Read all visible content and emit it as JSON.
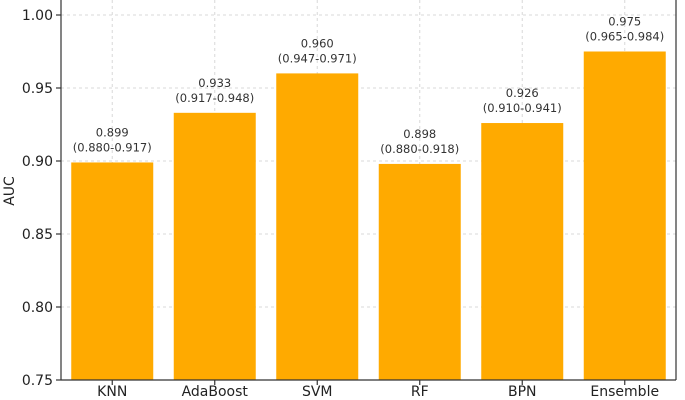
{
  "chart_data": {
    "type": "bar",
    "title": "",
    "xlabel": "",
    "ylabel": "AUC",
    "ylim": [
      0.75,
      1.0
    ],
    "yticks": [
      "0.75",
      "0.80",
      "0.85",
      "0.90",
      "0.95",
      "1.00"
    ],
    "ytick_values": [
      0.75,
      0.8,
      0.85,
      0.9,
      0.95,
      1.0
    ],
    "grid": true,
    "bar_color": "#FFAA00",
    "categories": [
      "KNN",
      "AdaBoost",
      "SVM",
      "RF",
      "BPN",
      "Ensemble"
    ],
    "values": [
      0.899,
      0.933,
      0.96,
      0.898,
      0.926,
      0.975
    ],
    "value_labels": [
      "0.899",
      "0.933",
      "0.960",
      "0.898",
      "0.926",
      "0.975"
    ],
    "ci_labels": [
      "(0.880-0.917)",
      "(0.917-0.948)",
      "(0.947-0.971)",
      "(0.880-0.918)",
      "(0.910-0.941)",
      "(0.965-0.984)"
    ]
  }
}
